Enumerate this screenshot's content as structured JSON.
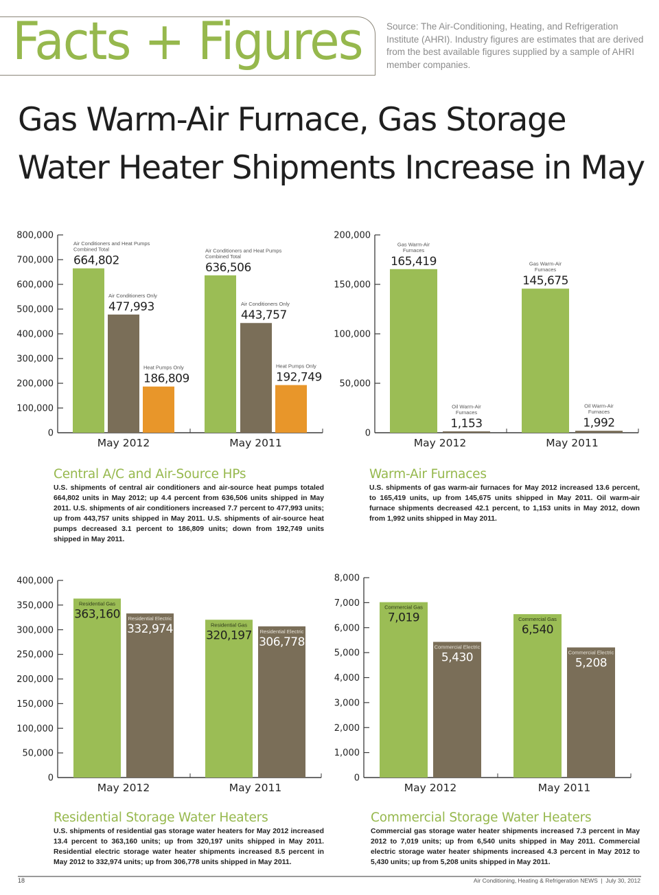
{
  "header": {
    "brand": "Facts + Figures",
    "source_note": "Source: The Air-Conditioning, Heating, and Refrigeration Institute (AHRI). Industry figures are estimates that are derived from the best available figures supplied by a sample of AHRI member companies.",
    "headline_line1": "Gas Warm-Air Furnace, Gas Storage",
    "headline_line2": "Water Heater Shipments Increase in May"
  },
  "colors": {
    "accent_green": "#9bbd55",
    "brown": "#7a6e58",
    "orange": "#e8962a",
    "title_green": "#96b84d"
  },
  "chart_data": [
    {
      "type": "bar",
      "id": "central-ac-hp",
      "title": "Central A/C and Air-Source HPs",
      "categories": [
        "May 2012",
        "May 2011"
      ],
      "ylim": [
        0,
        800000
      ],
      "yticks": [
        0,
        100000,
        200000,
        300000,
        400000,
        500000,
        600000,
        700000,
        800000
      ],
      "ytick_labels": [
        "0",
        "100,000",
        "200,000",
        "300,000",
        "400,000",
        "500,000",
        "600,000",
        "700,000",
        "800,000"
      ],
      "label_position": "above",
      "series": [
        {
          "name": "Air Conditioners and Heat Pumps Combined Total",
          "caption_lines": [
            "Air Conditioners and Heat Pumps",
            "Combined Total"
          ],
          "color": "#9bbd55",
          "values": [
            664802,
            636506
          ],
          "value_labels": [
            "664,802",
            "636,506"
          ]
        },
        {
          "name": "Air Conditioners Only",
          "caption_lines": [
            "Air Conditioners Only"
          ],
          "color": "#7a6e58",
          "values": [
            477993,
            443757
          ],
          "value_labels": [
            "477,993",
            "443,757"
          ]
        },
        {
          "name": "Heat Pumps Only",
          "caption_lines": [
            "Heat Pumps Only"
          ],
          "color": "#e8962a",
          "values": [
            186809,
            192749
          ],
          "value_labels": [
            "186,809",
            "192,749"
          ]
        }
      ],
      "grid": false,
      "legend": "none"
    },
    {
      "type": "bar",
      "id": "warm-air-furnaces",
      "title": "Warm-Air Furnaces",
      "categories": [
        "May 2012",
        "May 2011"
      ],
      "ylim": [
        0,
        200000
      ],
      "yticks": [
        0,
        50000,
        100000,
        150000,
        200000
      ],
      "ytick_labels": [
        "0",
        "50,000",
        "100,000",
        "150,000",
        "200,000"
      ],
      "label_position": "above",
      "series": [
        {
          "name": "Gas Warm-Air Furnaces",
          "caption_lines": [
            "Gas Warm-Air",
            "Furnaces"
          ],
          "color": "#9bbd55",
          "values": [
            165419,
            145675
          ],
          "value_labels": [
            "165,419",
            "145,675"
          ]
        },
        {
          "name": "Oil Warm-Air Furnaces",
          "caption_lines": [
            "Oil Warm-Air",
            "Furnaces"
          ],
          "color": "#7a6e58",
          "values": [
            1153,
            1992
          ],
          "value_labels": [
            "1,153",
            "1,992"
          ]
        }
      ],
      "grid": false,
      "legend": "none"
    },
    {
      "type": "bar",
      "id": "residential-water-heaters",
      "title": "Residential Storage Water Heaters",
      "categories": [
        "May 2012",
        "May 2011"
      ],
      "ylim": [
        0,
        400000
      ],
      "yticks": [
        0,
        50000,
        100000,
        150000,
        200000,
        250000,
        300000,
        350000,
        400000
      ],
      "ytick_labels": [
        "0",
        "50,000",
        "100,000",
        "150,000",
        "200,000",
        "250,000",
        "300,000",
        "350,000",
        "400,000"
      ],
      "label_position": "inside",
      "series": [
        {
          "name": "Residential Gas",
          "caption_lines": [
            "Residential Gas"
          ],
          "color": "#9bbd55",
          "text_color": "#1f1f1f",
          "values": [
            363160,
            320197
          ],
          "value_labels": [
            "363,160",
            "320,197"
          ]
        },
        {
          "name": "Residential Electric",
          "caption_lines": [
            "Residential Electric"
          ],
          "color": "#7a6e58",
          "text_color": "#ffffff",
          "values": [
            332974,
            306778
          ],
          "value_labels": [
            "332,974",
            "306,778"
          ]
        }
      ],
      "grid": false,
      "legend": "none"
    },
    {
      "type": "bar",
      "id": "commercial-water-heaters",
      "title": "Commercial Storage Water Heaters",
      "categories": [
        "May 2012",
        "May 2011"
      ],
      "ylim": [
        0,
        8000
      ],
      "yticks": [
        0,
        1000,
        2000,
        3000,
        4000,
        5000,
        6000,
        7000,
        8000
      ],
      "ytick_labels": [
        "0",
        "1,000",
        "2,000",
        "3,000",
        "4,000",
        "5,000",
        "6,000",
        "7,000",
        "8,000"
      ],
      "label_position": "inside",
      "series": [
        {
          "name": "Commercial Gas",
          "caption_lines": [
            "Commercial Gas"
          ],
          "color": "#9bbd55",
          "text_color": "#1f1f1f",
          "values": [
            7019,
            6540
          ],
          "value_labels": [
            "7,019",
            "6,540"
          ]
        },
        {
          "name": "Commercial Electric",
          "caption_lines": [
            "Commercial Electric"
          ],
          "color": "#7a6e58",
          "text_color": "#ffffff",
          "values": [
            5430,
            5208
          ],
          "value_labels": [
            "5,430",
            "5,208"
          ]
        }
      ],
      "grid": false,
      "legend": "none"
    }
  ],
  "sections": [
    {
      "title": "Central A/C and Air-Source HPs",
      "body": "U.S. shipments of central air conditioners and air-source heat pumps totaled 664,802 units in May 2012; up 4.4 percent from 636,506 units shipped in May 2011. U.S. shipments of air conditioners increased 7.7 percent to 477,993 units; up from 443,757 units shipped in May 2011. U.S. shipments of air-source heat pumps decreased 3.1 percent to 186,809 units; down from 192,749 units shipped in May 2011."
    },
    {
      "title": "Warm-Air Furnaces",
      "body": "U.S. shipments of gas warm-air furnaces for May 2012 increased 13.6 percent, to 165,419 units, up from 145,675 units shipped in May 2011. Oil warm-air furnace shipments decreased 42.1 percent, to 1,153 units in May 2012, down from 1,992 units shipped in May 2011."
    },
    {
      "title": "Residential Storage Water Heaters",
      "body": "U.S. shipments of residential gas storage water heaters for May 2012 increased 13.4 percent to 363,160 units; up from 320,197 units shipped in May 2011. Residential electric storage water heater shipments increased 8.5 percent in May 2012 to 332,974 units; up from 306,778 units shipped in May 2011."
    },
    {
      "title": "Commercial Storage Water Heaters",
      "body": "Commercial gas storage water heater shipments increased 7.3 percent in May 2012 to 7,019 units; up from 6,540 units shipped in May 2011. Commercial electric storage water heater shipments increased 4.3 percent in May 2012 to 5,430 units; up from 5,208 units shipped in May 2011."
    }
  ],
  "footer": {
    "page_number": "18",
    "credit": "Air Conditioning, Heating & Refrigeration NEWS  |  July 30, 2012"
  }
}
